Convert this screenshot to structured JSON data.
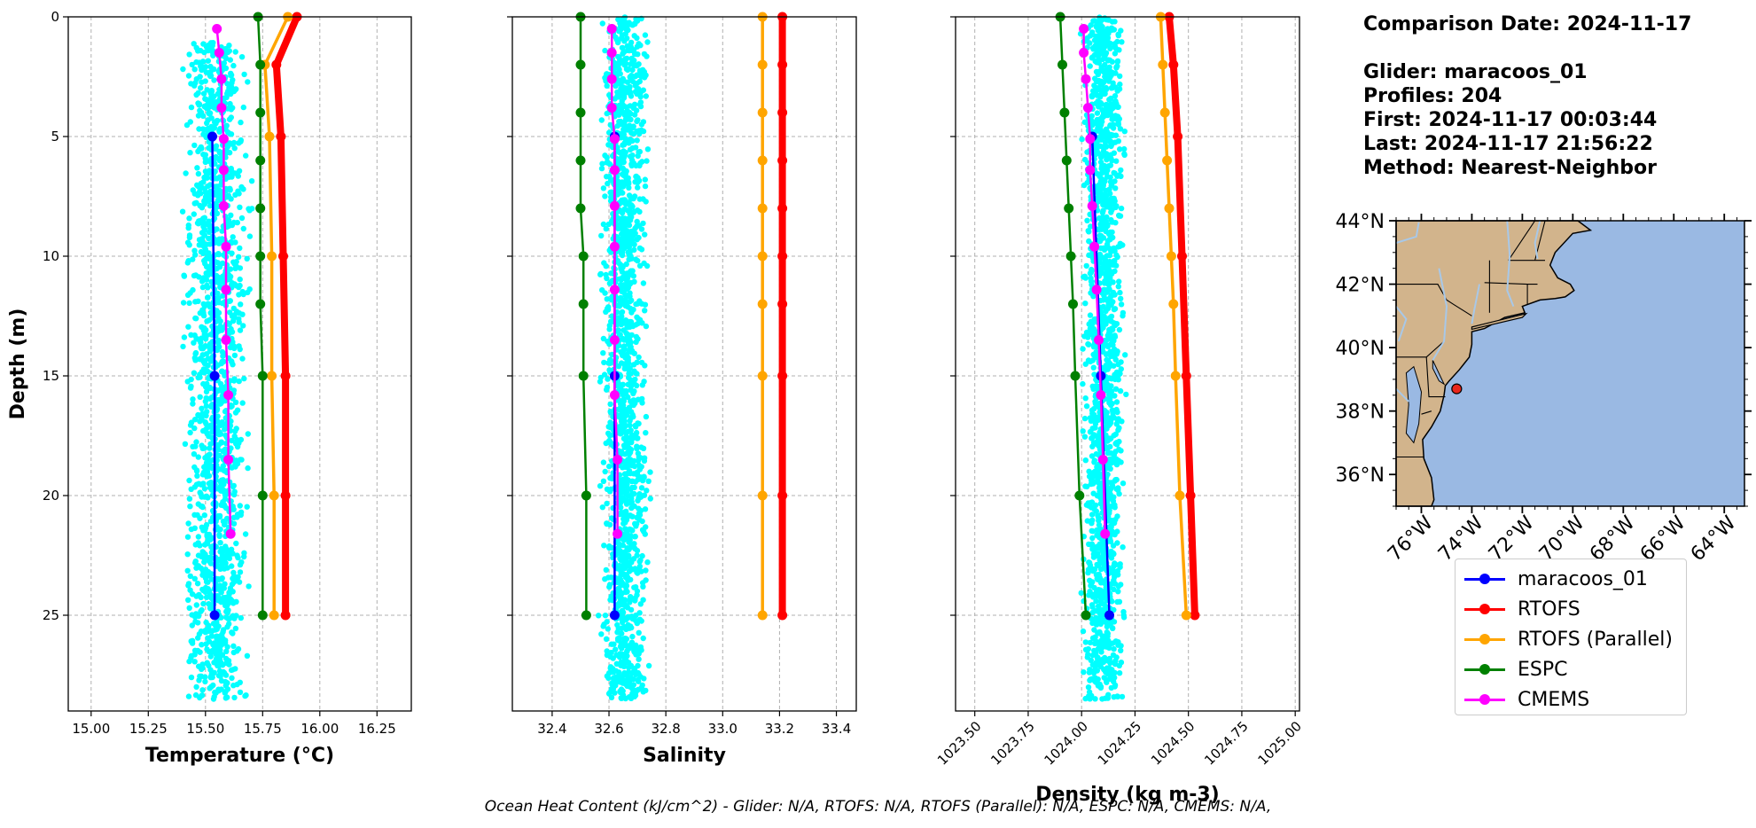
{
  "info": {
    "comparison_date": "Comparison Date: 2024-11-17",
    "glider": "Glider: maracoos_01",
    "profiles": "Profiles: 204",
    "first": "First: 2024-11-17 00:03:44",
    "last": "Last: 2024-11-17 21:56:22",
    "method": "Method: Nearest-Neighbor"
  },
  "footer": "Ocean Heat Content (kJ/cm^2) - Glider: N/A,  RTOFS: N/A,  RTOFS (Parallel): N/A,  ESPC: N/A,  CMEMS: N/A,",
  "colors": {
    "glider": "#0000ff",
    "rtofs": "#ff0000",
    "rtofs_parallel": "#ffa500",
    "espc": "#008000",
    "cmems": "#ff00ff",
    "scatter": "#00ffff",
    "land": "#d2b48c",
    "ocean": "#9ab9e3",
    "station": "#e8261c"
  },
  "legend": [
    {
      "name": "maracoos_01",
      "color_key": "glider"
    },
    {
      "name": "RTOFS",
      "color_key": "rtofs"
    },
    {
      "name": "RTOFS (Parallel)",
      "color_key": "rtofs_parallel"
    },
    {
      "name": "ESPC",
      "color_key": "espc"
    },
    {
      "name": "CMEMS",
      "color_key": "cmems"
    }
  ],
  "chart_data": [
    {
      "type": "line",
      "panel": "temperature",
      "xlabel": "Temperature (°C)",
      "ylabel": "Depth (m)",
      "xlim": [
        14.9,
        16.4
      ],
      "ylim": [
        29,
        0
      ],
      "xticks": [
        "15.00",
        "15.25",
        "15.50",
        "15.75",
        "16.00",
        "16.25"
      ],
      "xtick_values": [
        15.0,
        15.25,
        15.5,
        15.75,
        16.0,
        16.25
      ],
      "yticks": [
        0,
        5,
        10,
        15,
        20,
        25
      ],
      "grid": true,
      "scatter_cloud": {
        "name": "glider observations",
        "x_range": [
          15.37,
          15.72
        ],
        "depth_range": [
          1,
          28.5
        ]
      },
      "series": [
        {
          "name": "maracoos_01",
          "depth": [
            5,
            15,
            25
          ],
          "values": [
            15.53,
            15.54,
            15.54
          ]
        },
        {
          "name": "RTOFS",
          "depth": [
            0,
            2,
            5,
            10,
            15,
            20,
            25
          ],
          "values": [
            15.9,
            15.81,
            15.83,
            15.84,
            15.85,
            15.85,
            15.85
          ]
        },
        {
          "name": "RTOFS (Parallel)",
          "depth": [
            0,
            2,
            5,
            10,
            15,
            20,
            25
          ],
          "values": [
            15.86,
            15.76,
            15.78,
            15.79,
            15.79,
            15.8,
            15.8
          ]
        },
        {
          "name": "ESPC",
          "depth": [
            0,
            2,
            4,
            6,
            8,
            10,
            12,
            15,
            20,
            25
          ],
          "values": [
            15.73,
            15.74,
            15.74,
            15.74,
            15.74,
            15.74,
            15.74,
            15.75,
            15.75,
            15.75
          ]
        },
        {
          "name": "CMEMS",
          "depth": [
            0.5,
            1.5,
            2.6,
            3.8,
            5.1,
            6.4,
            7.9,
            9.6,
            11.4,
            13.5,
            15.8,
            18.5,
            21.6
          ],
          "values": [
            15.55,
            15.56,
            15.57,
            15.57,
            15.58,
            15.58,
            15.58,
            15.59,
            15.59,
            15.59,
            15.6,
            15.6,
            15.61
          ]
        }
      ]
    },
    {
      "type": "line",
      "panel": "salinity",
      "xlabel": "Salinity",
      "xlim": [
        32.26,
        33.47
      ],
      "ylim": [
        29,
        0
      ],
      "xticks": [
        "32.4",
        "32.6",
        "32.8",
        "33.0",
        "33.2",
        "33.4"
      ],
      "xtick_values": [
        32.4,
        32.6,
        32.8,
        33.0,
        33.2,
        33.4
      ],
      "grid": true,
      "scatter_cloud": {
        "name": "glider observations",
        "x_range": [
          32.55,
          32.76
        ],
        "depth_range": [
          0,
          28.5
        ]
      },
      "series": [
        {
          "name": "maracoos_01",
          "depth": [
            5,
            15,
            25
          ],
          "values": [
            32.62,
            32.62,
            32.62
          ]
        },
        {
          "name": "RTOFS",
          "depth": [
            0,
            2,
            4,
            6,
            8,
            10,
            12,
            15,
            20,
            25
          ],
          "values": [
            33.21,
            33.21,
            33.21,
            33.21,
            33.21,
            33.21,
            33.21,
            33.21,
            33.21,
            33.21
          ]
        },
        {
          "name": "RTOFS (Parallel)",
          "depth": [
            0,
            2,
            4,
            6,
            8,
            10,
            12,
            15,
            20,
            25
          ],
          "values": [
            33.14,
            33.14,
            33.14,
            33.14,
            33.14,
            33.14,
            33.14,
            33.14,
            33.14,
            33.14
          ]
        },
        {
          "name": "ESPC",
          "depth": [
            0,
            2,
            4,
            6,
            8,
            10,
            12,
            15,
            20,
            25
          ],
          "values": [
            32.5,
            32.5,
            32.5,
            32.5,
            32.5,
            32.51,
            32.51,
            32.51,
            32.52,
            32.52
          ]
        },
        {
          "name": "CMEMS",
          "depth": [
            0.5,
            1.5,
            2.6,
            3.8,
            5.1,
            6.4,
            7.9,
            9.6,
            11.4,
            13.5,
            15.8,
            18.5,
            21.6
          ],
          "values": [
            32.61,
            32.61,
            32.61,
            32.61,
            32.62,
            32.62,
            32.62,
            32.62,
            32.62,
            32.62,
            32.62,
            32.63,
            32.63
          ]
        }
      ]
    },
    {
      "type": "line",
      "panel": "density",
      "xlabel": "Density (kg m-3)",
      "xlim": [
        1023.41,
        1025.02
      ],
      "ylim": [
        29,
        0
      ],
      "xticks": [
        "1023.50",
        "1023.75",
        "1024.00",
        "1024.25",
        "1024.50",
        "1024.75",
        "1025.00"
      ],
      "xtick_values": [
        1023.5,
        1023.75,
        1024.0,
        1024.25,
        1024.5,
        1024.75,
        1025.0
      ],
      "grid": true,
      "scatter_cloud": {
        "name": "glider observations",
        "x_range": [
          1023.98,
          1024.22
        ],
        "depth_range": [
          0,
          28.5
        ]
      },
      "series": [
        {
          "name": "maracoos_01",
          "depth": [
            5,
            15,
            25
          ],
          "values": [
            1024.05,
            1024.09,
            1024.13
          ]
        },
        {
          "name": "RTOFS",
          "depth": [
            0,
            2,
            5,
            10,
            15,
            20,
            25
          ],
          "values": [
            1024.41,
            1024.43,
            1024.45,
            1024.47,
            1024.49,
            1024.51,
            1024.53
          ]
        },
        {
          "name": "RTOFS (Parallel)",
          "depth": [
            0,
            2,
            4,
            6,
            8,
            10,
            12,
            15,
            20,
            25
          ],
          "values": [
            1024.37,
            1024.38,
            1024.39,
            1024.4,
            1024.41,
            1024.42,
            1024.43,
            1024.44,
            1024.46,
            1024.49
          ]
        },
        {
          "name": "ESPC",
          "depth": [
            0,
            2,
            4,
            6,
            8,
            10,
            12,
            15,
            20,
            25
          ],
          "values": [
            1023.9,
            1023.91,
            1023.92,
            1023.93,
            1023.94,
            1023.95,
            1023.96,
            1023.97,
            1023.99,
            1024.02
          ]
        },
        {
          "name": "CMEMS",
          "depth": [
            0.5,
            1.5,
            2.6,
            3.8,
            5.1,
            6.4,
            7.9,
            9.6,
            11.4,
            13.5,
            15.8,
            18.5,
            21.6
          ],
          "values": [
            1024.01,
            1024.01,
            1024.02,
            1024.03,
            1024.04,
            1024.04,
            1024.05,
            1024.06,
            1024.07,
            1024.08,
            1024.09,
            1024.1,
            1024.11
          ]
        }
      ]
    },
    {
      "type": "map",
      "panel": "map",
      "lat_ticks": [
        "36°N",
        "38°N",
        "40°N",
        "42°N",
        "44°N"
      ],
      "lat_values": [
        36,
        38,
        40,
        42,
        44
      ],
      "lon_ticks": [
        "76°W",
        "74°W",
        "72°W",
        "70°W",
        "68°W",
        "66°W",
        "64°W"
      ],
      "lon_values": [
        -76,
        -74,
        -72,
        -70,
        -68,
        -66,
        -64
      ],
      "extent": {
        "lon": [
          -77,
          -63.2
        ],
        "lat": [
          35,
          44
        ]
      },
      "station": {
        "name": "maracoos_01",
        "lon": -74.6,
        "lat": 38.7
      }
    }
  ]
}
